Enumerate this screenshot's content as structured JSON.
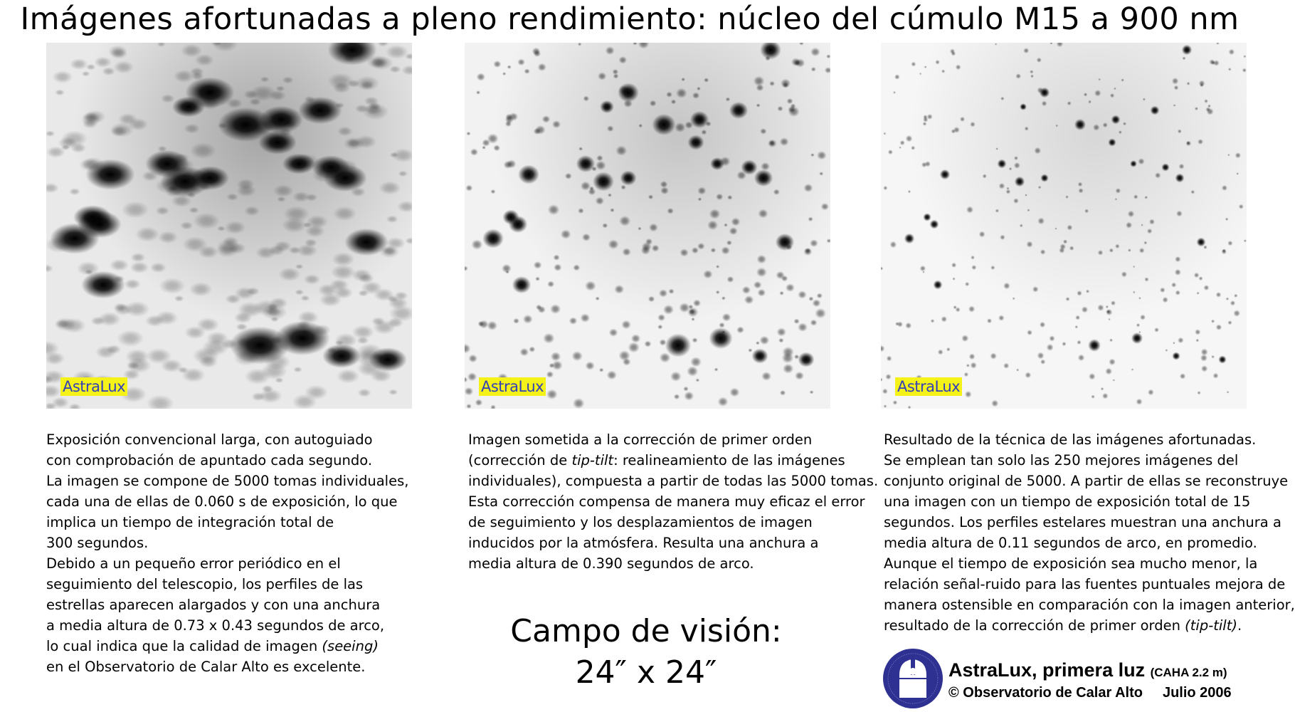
{
  "title": "Imágenes afortunadas a pleno rendimiento: núcleo del cúmulo M15 a 900 nm",
  "panels": [
    {
      "tag": "AstraLux",
      "quality": "long-exposure"
    },
    {
      "tag": "AstraLux",
      "quality": "tip-tilt"
    },
    {
      "tag": "AstraLux",
      "quality": "lucky-imaging"
    }
  ],
  "descriptions": [
    [
      [
        {
          "t": "Exposición convencional larga, con autoguiado"
        }
      ],
      [
        {
          "t": "con comprobación de apuntado cada segundo."
        }
      ],
      [
        {
          "t": "La imagen se compone de 5000 tomas individuales,"
        }
      ],
      [
        {
          "t": "cada una de ellas de 0.060 s de exposición, lo que"
        }
      ],
      [
        {
          "t": "implica un tiempo de integración total de"
        }
      ],
      [
        {
          "t": "300 segundos."
        }
      ],
      [
        {
          "t": "Debido a un pequeño error periódico en el"
        }
      ],
      [
        {
          "t": "seguimiento del telescopio, los perfiles de las"
        }
      ],
      [
        {
          "t": "estrellas aparecen alargados y con una anchura"
        }
      ],
      [
        {
          "t": "a media altura de 0.73 x 0.43 segundos de arco,"
        }
      ],
      [
        {
          "t": "lo cual indica que la calidad de imagen "
        },
        {
          "t": "(seeing)",
          "i": true
        }
      ],
      [
        {
          "t": "en el Observatorio de Calar Alto es excelente."
        }
      ]
    ],
    [
      [
        {
          "t": "Imagen sometida a la corrección de primer orden"
        }
      ],
      [
        {
          "t": "(corrección de "
        },
        {
          "t": "tip-tilt",
          "i": true
        },
        {
          "t": ": realineamiento de las imágenes"
        }
      ],
      [
        {
          "t": "individuales), compuesta a partir de todas las 5000 tomas."
        }
      ],
      [
        {
          "t": "Esta corrección compensa de manera muy eficaz el error"
        }
      ],
      [
        {
          "t": "de seguimiento y los desplazamientos de imagen"
        }
      ],
      [
        {
          "t": "inducidos por la atmósfera. Resulta una anchura a"
        }
      ],
      [
        {
          "t": "media altura de 0.390 segundos de arco."
        }
      ]
    ],
    [
      [
        {
          "t": "Resultado de la técnica de las imágenes afortunadas."
        }
      ],
      [
        {
          "t": "Se emplean tan solo las 250 mejores imágenes del"
        }
      ],
      [
        {
          "t": "conjunto original de 5000. A partir de ellas se reconstruye"
        }
      ],
      [
        {
          "t": "una imagen con un tiempo de exposición total de 15"
        }
      ],
      [
        {
          "t": "segundos. Los perfiles estelares muestran una anchura a"
        }
      ],
      [
        {
          "t": "media altura de 0.11 segundos de arco, en promedio."
        }
      ],
      [
        {
          "t": "Aunque el tiempo de exposición sea mucho menor, la"
        }
      ],
      [
        {
          "t": "relación señal-ruido para las fuentes puntuales mejora de"
        }
      ],
      [
        {
          "t": "manera ostensible en comparación con la imagen anterior,"
        }
      ],
      [
        {
          "t": "resultado de la corrección de primer orden "
        },
        {
          "t": "(tip-tilt)",
          "i": true
        },
        {
          "t": "."
        }
      ]
    ]
  ],
  "field_of_view": {
    "line1": "Campo de visión:",
    "line2": "24″ x 24″"
  },
  "credits": {
    "main": "AstraLux, primera luz",
    "telescope": "(CAHA 2.2 m)",
    "copyright": "© Observatorio de Calar Alto",
    "date": "Julio 2006"
  },
  "colors": {
    "tag_bg": "#f5f21a",
    "tag_text": "#3340b8",
    "logo": "#2e3192"
  }
}
